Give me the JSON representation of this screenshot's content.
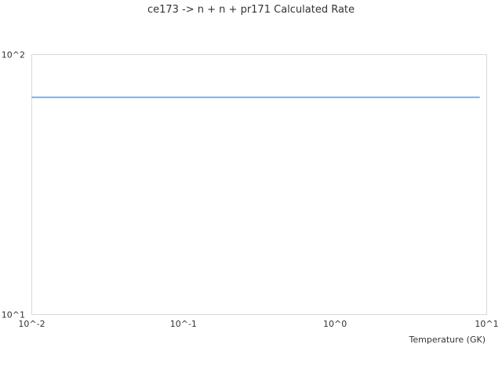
{
  "chart_data": {
    "type": "line",
    "title": "ce173 -> n + n + pr171 Calculated Rate",
    "xlabel": "Temperature (GK)",
    "ylabel": "",
    "x_scale": "log",
    "y_scale": "log",
    "xlim": [
      0.01,
      10
    ],
    "ylim": [
      10,
      100
    ],
    "x_ticks": [
      "10^-2",
      "10^-1",
      "10^0",
      "10^1"
    ],
    "y_ticks": [
      "10^2",
      "10^1"
    ],
    "grid": false,
    "series": [
      {
        "color": "#5b9bd5",
        "x": [
          0.01,
          0.1,
          1,
          9
        ],
        "y": [
          68.5,
          68.5,
          68.5,
          68.5
        ]
      }
    ]
  }
}
